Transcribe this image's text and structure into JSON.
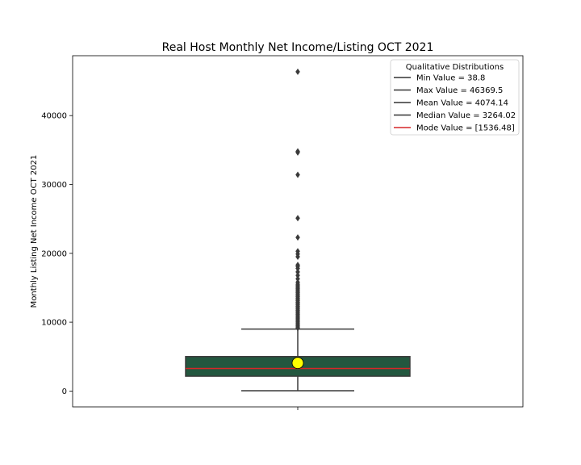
{
  "chart_data": {
    "type": "box",
    "title": "Real Host Monthly Net Income/Listing OCT 2021",
    "xlabel": "",
    "ylabel": "Monthly Listing Net Income OCT 2021",
    "ylim": [
      -2300,
      48700
    ],
    "yticks": [
      0,
      10000,
      20000,
      30000,
      40000
    ],
    "ytick_labels": [
      "0",
      "10000",
      "20000",
      "30000",
      "40000"
    ],
    "grid": false,
    "box": {
      "whisker_low": 38.8,
      "q1": 2150,
      "median": 3264.02,
      "q3": 5000,
      "whisker_high": 9000,
      "mean": 4074.14,
      "mode": 1536.48,
      "color": "#23573f",
      "median_color": "#d62728",
      "mean_marker_color": "#ffff00"
    },
    "outliers": [
      46369.5,
      34800,
      34650,
      31400,
      25100,
      22300,
      20300,
      19900,
      19500,
      18300,
      18100,
      17800,
      17300,
      16800,
      16300,
      15800,
      15500,
      15300,
      15100,
      14900,
      14700,
      14500,
      14300,
      14100,
      13900,
      13700,
      13500,
      13300,
      13100,
      12900,
      12700,
      12500,
      12300,
      12100,
      11900,
      11700,
      11500,
      11300,
      11100,
      10900,
      10700,
      10500,
      10300,
      10100,
      9900,
      9700,
      9500,
      9300,
      9150
    ],
    "legend": {
      "title": "Qualitative Distributions",
      "placement": "top-right",
      "entries": [
        {
          "label": "Min Value = 38.8",
          "color": "#333333"
        },
        {
          "label": "Max Value = 46369.5",
          "color": "#333333"
        },
        {
          "label": "Mean Value = 4074.14",
          "color": "#333333"
        },
        {
          "label": "Median Value = 3264.02",
          "color": "#333333"
        },
        {
          "label": "Mode Value = [1536.48]",
          "color": "#d62728"
        }
      ]
    }
  }
}
